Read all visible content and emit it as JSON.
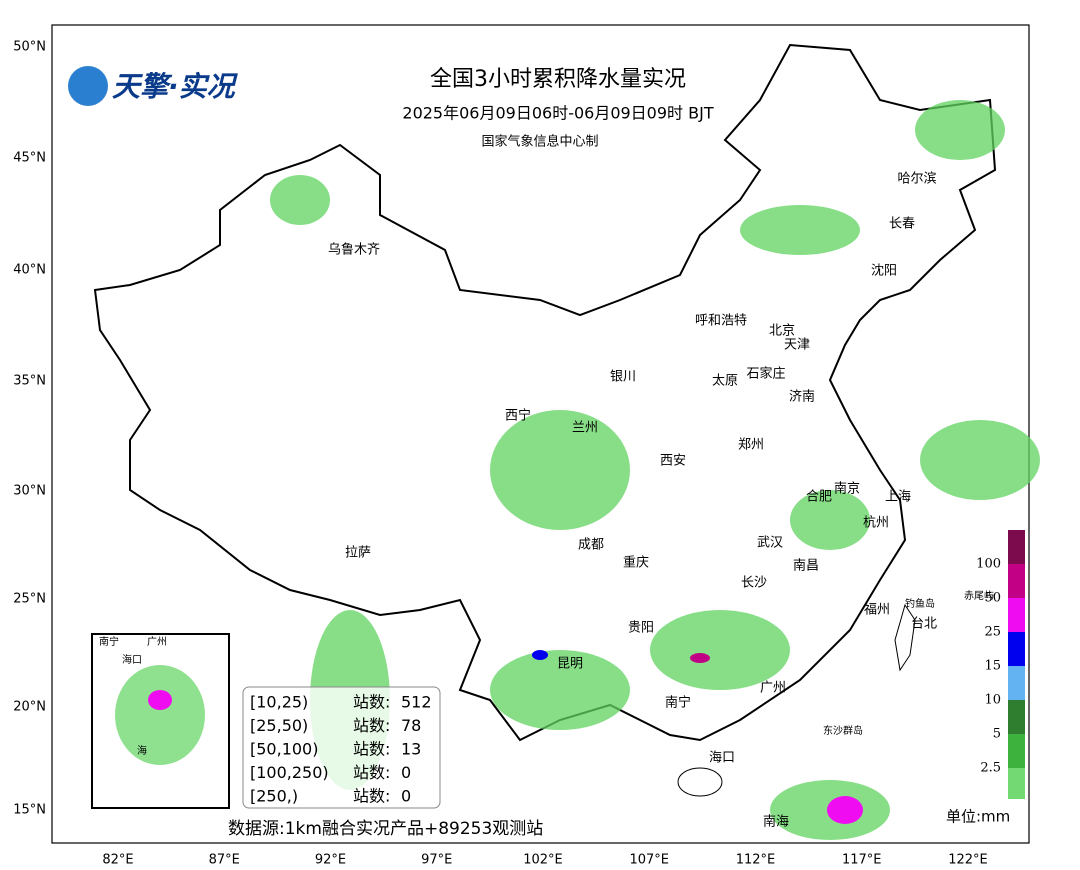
{
  "header": {
    "logo": "天擎·实况",
    "title": "全国3小时累积降水量实况",
    "subtitle": "2025年06月09日06时-06月09日09时 BJT",
    "producer": "国家气象信息中心制"
  },
  "axes": {
    "lat_labels": [
      "50°N",
      "45°N",
      "40°N",
      "35°N",
      "30°N",
      "25°N",
      "20°N",
      "15°N"
    ],
    "lon_labels": [
      "82°E",
      "87°E",
      "92°E",
      "97°E",
      "102°E",
      "107°E",
      "112°E",
      "117°E",
      "122°E"
    ]
  },
  "cities": [
    "乌鲁木齐",
    "哈尔滨",
    "长春",
    "沈阳",
    "呼和浩特",
    "北京",
    "天津",
    "银川",
    "太原",
    "石家庄",
    "济南",
    "西宁",
    "兰州",
    "西安",
    "郑州",
    "合肥",
    "南京",
    "上海",
    "杭州",
    "拉萨",
    "成都",
    "重庆",
    "武汉",
    "南昌",
    "长沙",
    "福州",
    "贵阳",
    "昆明",
    "广州",
    "南宁",
    "海口",
    "钓鱼岛",
    "赤尾屿",
    "台北",
    "东沙群岛",
    "南海"
  ],
  "legend": {
    "levels": [
      100,
      50,
      25,
      15,
      10,
      5,
      2.5
    ],
    "colors": [
      "#7b0b4d",
      "#c20086",
      "#f00cf0",
      "#0000ee",
      "#63b3f2",
      "#2f7e2f",
      "#3db33d",
      "#73d973"
    ],
    "unit": "单位:mm"
  },
  "stats": {
    "rows": [
      {
        "range": "[10,25)",
        "count_label": "站数:",
        "count": 512
      },
      {
        "range": "[25,50)",
        "count_label": "站数:",
        "count": 78
      },
      {
        "range": "[50,100)",
        "count_label": "站数:",
        "count": 13
      },
      {
        "range": "[100,250)",
        "count_label": "站数:",
        "count": 0
      },
      {
        "range": "[250,)",
        "count_label": "站数:",
        "count": 0
      }
    ]
  },
  "source": "数据源:1km融合实况产品+89253观测站",
  "inset": {
    "labels": [
      "南宁",
      "广州",
      "海口",
      "海"
    ]
  }
}
